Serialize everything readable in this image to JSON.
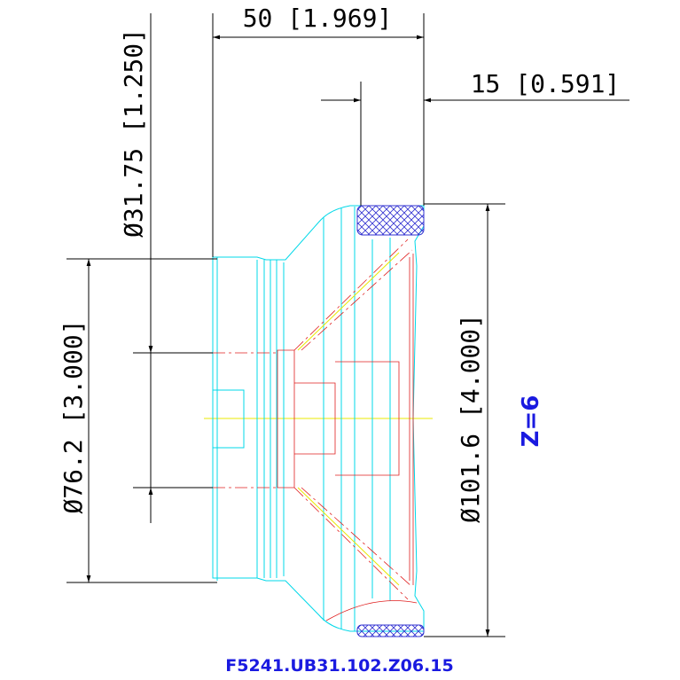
{
  "dimensions": [
    {
      "label": "50 [1.969]"
    },
    {
      "label": "15 [0.591]"
    },
    {
      "label": "Ø31.75 [1.250]"
    },
    {
      "label": "Ø76.2 [3.000]"
    },
    {
      "label": "Ø101.6 [4.000]"
    }
  ],
  "note": "Z=6",
  "part_number": "F5241.UB31.102.Z06.15"
}
